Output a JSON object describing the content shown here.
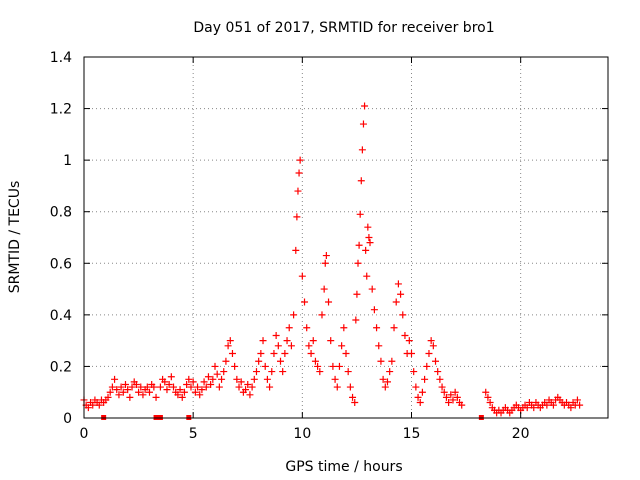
{
  "chart_data": {
    "type": "scatter",
    "title": "Day 051 of 2017, SRMTID for receiver bro1",
    "xlabel": "GPS time / hours",
    "ylabel": "SRMTID / TECUs",
    "xlim": [
      0,
      24
    ],
    "ylim": [
      0,
      1.4
    ],
    "grid": true,
    "marker": "+",
    "series_color": "#ff0000",
    "xticks": [
      {
        "value": 0,
        "label": "0"
      },
      {
        "value": 5,
        "label": "5"
      },
      {
        "value": 10,
        "label": "10"
      },
      {
        "value": 15,
        "label": "15"
      },
      {
        "value": 20,
        "label": "20"
      }
    ],
    "yticks": [
      {
        "value": 0,
        "label": "0"
      },
      {
        "value": 0.2,
        "label": "0.2"
      },
      {
        "value": 0.4,
        "label": "0.4"
      },
      {
        "value": 0.6,
        "label": "0.6"
      },
      {
        "value": 0.8,
        "label": "0.8"
      },
      {
        "value": 1.0,
        "label": "1"
      },
      {
        "value": 1.2,
        "label": "1.2"
      },
      {
        "value": 1.4,
        "label": "1.4"
      }
    ],
    "series": [
      {
        "name": "SRMTID bro1",
        "points": [
          [
            0.0,
            0.07
          ],
          [
            0.1,
            0.05
          ],
          [
            0.2,
            0.04
          ],
          [
            0.3,
            0.06
          ],
          [
            0.4,
            0.05
          ],
          [
            0.5,
            0.07
          ],
          [
            0.6,
            0.06
          ],
          [
            0.7,
            0.05
          ],
          [
            0.8,
            0.07
          ],
          [
            0.9,
            0.06
          ],
          [
            1.0,
            0.07
          ],
          [
            1.1,
            0.08
          ],
          [
            1.2,
            0.1
          ],
          [
            1.3,
            0.12
          ],
          [
            1.4,
            0.15
          ],
          [
            1.5,
            0.11
          ],
          [
            1.6,
            0.09
          ],
          [
            1.7,
            0.12
          ],
          [
            1.8,
            0.1
          ],
          [
            1.9,
            0.13
          ],
          [
            2.0,
            0.11
          ],
          [
            2.1,
            0.08
          ],
          [
            2.2,
            0.12
          ],
          [
            2.3,
            0.14
          ],
          [
            2.4,
            0.13
          ],
          [
            2.5,
            0.1
          ],
          [
            2.6,
            0.12
          ],
          [
            2.7,
            0.09
          ],
          [
            2.8,
            0.11
          ],
          [
            2.9,
            0.12
          ],
          [
            3.0,
            0.1
          ],
          [
            3.1,
            0.13
          ],
          [
            3.2,
            0.12
          ],
          [
            3.3,
            0.08
          ],
          [
            3.5,
            0.12
          ],
          [
            3.6,
            0.15
          ],
          [
            3.7,
            0.14
          ],
          [
            3.8,
            0.11
          ],
          [
            3.9,
            0.13
          ],
          [
            4.0,
            0.16
          ],
          [
            4.1,
            0.12
          ],
          [
            4.2,
            0.1
          ],
          [
            4.3,
            0.09
          ],
          [
            4.4,
            0.11
          ],
          [
            4.5,
            0.08
          ],
          [
            4.6,
            0.1
          ],
          [
            4.7,
            0.13
          ],
          [
            4.8,
            0.15
          ],
          [
            4.9,
            0.12
          ],
          [
            5.0,
            0.14
          ],
          [
            5.1,
            0.1
          ],
          [
            5.2,
            0.12
          ],
          [
            5.3,
            0.09
          ],
          [
            5.4,
            0.11
          ],
          [
            5.5,
            0.14
          ],
          [
            5.6,
            0.12
          ],
          [
            5.7,
            0.16
          ],
          [
            5.8,
            0.13
          ],
          [
            5.9,
            0.15
          ],
          [
            6.0,
            0.2
          ],
          [
            6.1,
            0.17
          ],
          [
            6.2,
            0.12
          ],
          [
            6.3,
            0.15
          ],
          [
            6.4,
            0.18
          ],
          [
            6.5,
            0.22
          ],
          [
            6.6,
            0.28
          ],
          [
            6.7,
            0.3
          ],
          [
            6.8,
            0.25
          ],
          [
            6.9,
            0.2
          ],
          [
            7.0,
            0.15
          ],
          [
            7.1,
            0.12
          ],
          [
            7.2,
            0.14
          ],
          [
            7.3,
            0.1
          ],
          [
            7.4,
            0.11
          ],
          [
            7.5,
            0.13
          ],
          [
            7.6,
            0.09
          ],
          [
            7.7,
            0.12
          ],
          [
            7.8,
            0.15
          ],
          [
            7.9,
            0.18
          ],
          [
            8.0,
            0.22
          ],
          [
            8.1,
            0.25
          ],
          [
            8.2,
            0.3
          ],
          [
            8.3,
            0.2
          ],
          [
            8.4,
            0.15
          ],
          [
            8.5,
            0.12
          ],
          [
            8.6,
            0.18
          ],
          [
            8.7,
            0.25
          ],
          [
            8.8,
            0.32
          ],
          [
            8.9,
            0.28
          ],
          [
            9.0,
            0.22
          ],
          [
            9.1,
            0.18
          ],
          [
            9.2,
            0.25
          ],
          [
            9.3,
            0.3
          ],
          [
            9.4,
            0.35
          ],
          [
            9.5,
            0.28
          ],
          [
            9.6,
            0.4
          ],
          [
            9.7,
            0.65
          ],
          [
            9.75,
            0.78
          ],
          [
            9.8,
            0.88
          ],
          [
            9.85,
            0.95
          ],
          [
            9.9,
            1.0
          ],
          [
            10.0,
            0.55
          ],
          [
            10.1,
            0.45
          ],
          [
            10.2,
            0.35
          ],
          [
            10.3,
            0.28
          ],
          [
            10.4,
            0.25
          ],
          [
            10.5,
            0.3
          ],
          [
            10.6,
            0.22
          ],
          [
            10.7,
            0.2
          ],
          [
            10.8,
            0.18
          ],
          [
            10.9,
            0.4
          ],
          [
            11.0,
            0.5
          ],
          [
            11.05,
            0.6
          ],
          [
            11.1,
            0.63
          ],
          [
            11.2,
            0.45
          ],
          [
            11.3,
            0.3
          ],
          [
            11.4,
            0.2
          ],
          [
            11.5,
            0.15
          ],
          [
            11.6,
            0.12
          ],
          [
            11.7,
            0.2
          ],
          [
            11.8,
            0.28
          ],
          [
            11.9,
            0.35
          ],
          [
            12.0,
            0.25
          ],
          [
            12.1,
            0.18
          ],
          [
            12.2,
            0.12
          ],
          [
            12.3,
            0.08
          ],
          [
            12.4,
            0.06
          ],
          [
            12.45,
            0.38
          ],
          [
            12.5,
            0.48
          ],
          [
            12.55,
            0.6
          ],
          [
            12.6,
            0.67
          ],
          [
            12.65,
            0.79
          ],
          [
            12.7,
            0.92
          ],
          [
            12.75,
            1.04
          ],
          [
            12.8,
            1.14
          ],
          [
            12.85,
            1.21
          ],
          [
            12.9,
            0.65
          ],
          [
            12.95,
            0.55
          ],
          [
            13.0,
            0.74
          ],
          [
            13.05,
            0.7
          ],
          [
            13.1,
            0.68
          ],
          [
            13.2,
            0.5
          ],
          [
            13.3,
            0.42
          ],
          [
            13.4,
            0.35
          ],
          [
            13.5,
            0.28
          ],
          [
            13.6,
            0.22
          ],
          [
            13.7,
            0.15
          ],
          [
            13.8,
            0.12
          ],
          [
            13.9,
            0.14
          ],
          [
            14.0,
            0.18
          ],
          [
            14.1,
            0.22
          ],
          [
            14.2,
            0.35
          ],
          [
            14.3,
            0.45
          ],
          [
            14.4,
            0.52
          ],
          [
            14.5,
            0.48
          ],
          [
            14.6,
            0.4
          ],
          [
            14.7,
            0.32
          ],
          [
            14.8,
            0.25
          ],
          [
            14.9,
            0.3
          ],
          [
            15.0,
            0.25
          ],
          [
            15.1,
            0.18
          ],
          [
            15.2,
            0.12
          ],
          [
            15.3,
            0.08
          ],
          [
            15.4,
            0.06
          ],
          [
            15.5,
            0.1
          ],
          [
            15.6,
            0.15
          ],
          [
            15.7,
            0.2
          ],
          [
            15.8,
            0.25
          ],
          [
            15.9,
            0.3
          ],
          [
            16.0,
            0.28
          ],
          [
            16.1,
            0.22
          ],
          [
            16.2,
            0.18
          ],
          [
            16.3,
            0.15
          ],
          [
            16.4,
            0.12
          ],
          [
            16.5,
            0.1
          ],
          [
            16.6,
            0.08
          ],
          [
            16.7,
            0.06
          ],
          [
            16.8,
            0.09
          ],
          [
            16.9,
            0.07
          ],
          [
            17.0,
            0.1
          ],
          [
            17.1,
            0.08
          ],
          [
            17.2,
            0.06
          ],
          [
            17.3,
            0.05
          ],
          [
            18.4,
            0.1
          ],
          [
            18.5,
            0.08
          ],
          [
            18.6,
            0.06
          ],
          [
            18.7,
            0.04
          ],
          [
            18.8,
            0.03
          ],
          [
            18.9,
            0.02
          ],
          [
            19.0,
            0.03
          ],
          [
            19.1,
            0.02
          ],
          [
            19.2,
            0.03
          ],
          [
            19.3,
            0.04
          ],
          [
            19.4,
            0.03
          ],
          [
            19.5,
            0.02
          ],
          [
            19.6,
            0.03
          ],
          [
            19.7,
            0.04
          ],
          [
            19.8,
            0.05
          ],
          [
            19.9,
            0.04
          ],
          [
            20.0,
            0.03
          ],
          [
            20.1,
            0.04
          ],
          [
            20.2,
            0.05
          ],
          [
            20.3,
            0.04
          ],
          [
            20.4,
            0.06
          ],
          [
            20.5,
            0.05
          ],
          [
            20.6,
            0.04
          ],
          [
            20.7,
            0.06
          ],
          [
            20.8,
            0.05
          ],
          [
            20.9,
            0.04
          ],
          [
            21.0,
            0.05
          ],
          [
            21.1,
            0.06
          ],
          [
            21.2,
            0.05
          ],
          [
            21.3,
            0.07
          ],
          [
            21.4,
            0.06
          ],
          [
            21.5,
            0.05
          ],
          [
            21.6,
            0.07
          ],
          [
            21.7,
            0.08
          ],
          [
            21.8,
            0.07
          ],
          [
            21.9,
            0.06
          ],
          [
            22.0,
            0.05
          ],
          [
            22.1,
            0.06
          ],
          [
            22.2,
            0.05
          ],
          [
            22.3,
            0.04
          ],
          [
            22.4,
            0.06
          ],
          [
            22.5,
            0.05
          ],
          [
            22.6,
            0.07
          ],
          [
            22.7,
            0.05
          ]
        ]
      }
    ],
    "zero_markers": [
      0.9,
      3.3,
      3.4,
      3.5,
      4.8,
      18.2
    ]
  }
}
